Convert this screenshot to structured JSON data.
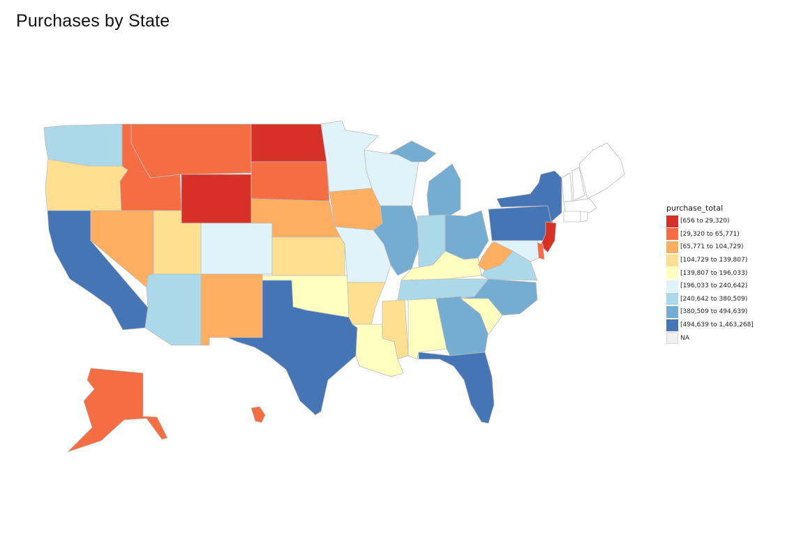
{
  "title": "Purchases by State",
  "legend": {
    "title": "purchase_total",
    "items": [
      {
        "label": "[656 to 29,320)",
        "color": "#d73027"
      },
      {
        "label": "[29,320 to 65,771)",
        "color": "#f46d43"
      },
      {
        "label": "[65,771 to 104,729)",
        "color": "#fdae61"
      },
      {
        "label": "[104,729 to 139,807)",
        "color": "#fee090"
      },
      {
        "label": "[139,807 to 196,033)",
        "color": "#ffffbf"
      },
      {
        "label": "[196,033 to 240,642)",
        "color": "#e0f3f8"
      },
      {
        "label": "[240,642 to 380,509)",
        "color": "#abd9e9"
      },
      {
        "label": "[380,509 to 494,639)",
        "color": "#74add1"
      },
      {
        "label": "[494,639 to 1,463,268]",
        "color": "#4575b4"
      },
      {
        "label": "NA",
        "color": "#f0f0f0"
      }
    ]
  },
  "states": [
    {
      "name": "Washington",
      "bin": 6
    },
    {
      "name": "Oregon",
      "bin": 3
    },
    {
      "name": "California",
      "bin": 8
    },
    {
      "name": "Nevada",
      "bin": 2
    },
    {
      "name": "Idaho",
      "bin": 1
    },
    {
      "name": "Montana",
      "bin": 1
    },
    {
      "name": "Wyoming",
      "bin": 0
    },
    {
      "name": "Utah",
      "bin": 3
    },
    {
      "name": "Arizona",
      "bin": 6
    },
    {
      "name": "Colorado",
      "bin": 5
    },
    {
      "name": "New Mexico",
      "bin": 2
    },
    {
      "name": "North Dakota",
      "bin": 0
    },
    {
      "name": "South Dakota",
      "bin": 1
    },
    {
      "name": "Nebraska",
      "bin": 2
    },
    {
      "name": "Kansas",
      "bin": 3
    },
    {
      "name": "Oklahoma",
      "bin": 4
    },
    {
      "name": "Texas",
      "bin": 8
    },
    {
      "name": "Minnesota",
      "bin": 5
    },
    {
      "name": "Iowa",
      "bin": 2
    },
    {
      "name": "Missouri",
      "bin": 5
    },
    {
      "name": "Arkansas",
      "bin": 3
    },
    {
      "name": "Louisiana",
      "bin": 4
    },
    {
      "name": "Wisconsin",
      "bin": 5
    },
    {
      "name": "Illinois",
      "bin": 7
    },
    {
      "name": "Michigan",
      "bin": 7
    },
    {
      "name": "Indiana",
      "bin": 6
    },
    {
      "name": "Ohio",
      "bin": 7
    },
    {
      "name": "Kentucky",
      "bin": 4
    },
    {
      "name": "Tennessee",
      "bin": 6
    },
    {
      "name": "Mississippi",
      "bin": 3
    },
    {
      "name": "Alabama",
      "bin": 4
    },
    {
      "name": "Georgia",
      "bin": 7
    },
    {
      "name": "Florida",
      "bin": 8
    },
    {
      "name": "South Carolina",
      "bin": 4
    },
    {
      "name": "North Carolina",
      "bin": 7
    },
    {
      "name": "Virginia",
      "bin": 6
    },
    {
      "name": "West Virginia",
      "bin": 2
    },
    {
      "name": "Pennsylvania",
      "bin": 8
    },
    {
      "name": "New York",
      "bin": 8
    },
    {
      "name": "New Jersey",
      "bin": 0
    },
    {
      "name": "Delaware",
      "bin": 1
    },
    {
      "name": "Maryland",
      "bin": 5
    },
    {
      "name": "Vermont",
      "bin": 9
    },
    {
      "name": "New Hampshire",
      "bin": 9
    },
    {
      "name": "Maine",
      "bin": 9
    },
    {
      "name": "Massachusetts",
      "bin": 9
    },
    {
      "name": "Connecticut",
      "bin": 9
    },
    {
      "name": "Rhode Island",
      "bin": 9
    },
    {
      "name": "Alaska",
      "bin": 1
    },
    {
      "name": "Hawaii",
      "bin": 1
    }
  ]
}
